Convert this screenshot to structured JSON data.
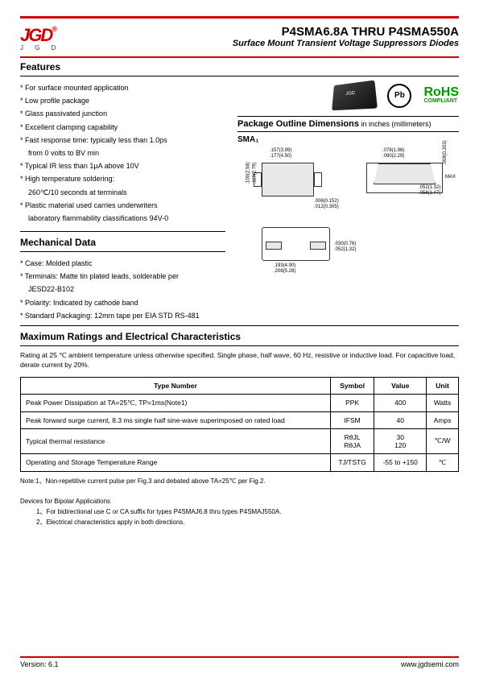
{
  "logo": {
    "mark": "JGD",
    "sub": "J G D",
    "reg": "®"
  },
  "title": "P4SMA6.8A THRU P4SMA550A",
  "subtitle": "Surface Mount Transient Voltage Suppressors Diodes",
  "sections": {
    "features": "Features",
    "mechanical": "Mechanical Data",
    "maxratings": "Maximum Ratings and Electrical Characteristics",
    "pkg_outline": "Package Outline Dimensions",
    "pkg_units": " in inches (millimeters)",
    "sma": "SMA₁"
  },
  "features": [
    "For surface mounted application",
    "Low profile package",
    "Glass passivated junction",
    "Excellent clamping capability",
    "Fast response time: typically less than 1.0ps",
    "from 0 volts to BV min",
    "Typical IR less than 1μA above 10V",
    "High temperature soldering:",
    "260℃/10 seconds at terminals",
    "Plastic material used carries underwriters",
    "laboratory flammability classifications 94V-0"
  ],
  "feature_indents": [
    false,
    false,
    false,
    false,
    false,
    true,
    false,
    false,
    true,
    false,
    true
  ],
  "mechanical": [
    "Case: Molded plastic",
    "Terminals: Matte tin plated leads, solderable per",
    "JESD22-B102",
    "Polarity: Indicated by cathode band",
    "Standard Packaging: 12mm tape per EIA STD RS-481"
  ],
  "mech_indents": [
    false,
    false,
    true,
    false,
    false
  ],
  "compliance": {
    "pb": "Pb",
    "rohs": "RoHS",
    "rohs_sub": "COMPLIANT"
  },
  "dimensions": {
    "d1": ".157(3.99)",
    "d2": ".177(4.50)",
    "d3": ".078(1.98)",
    "d4": ".090(2.29)",
    "d5": ".100(2.54)",
    "d6": ".110(2.79)",
    "d7": ".006(0.152)",
    "d8": ".012(0.305)",
    "d9": ".052(1.32)",
    "d10": ".058(1.47)",
    "d11": ".030(0.76)",
    "d12": ".052(1.32)",
    "d13": ".193(4.90)",
    "d14": ".208(5.28)",
    "d15": ".008(0.203)",
    "d16": "MAX"
  },
  "ratings_note": "Rating at 25 ℃ ambient temperature unless otherwise specified. Single phase, half wave, 60 Hz, resistive or inductive load. For capacitive load, derate current by 20%.",
  "table": {
    "headers": [
      "Type Number",
      "Symbol",
      "Value",
      "Unit"
    ],
    "rows": [
      [
        "Peak Power Dissipation at TA=25℃, TP=1ms(Note1)",
        "PPK",
        "400",
        "Watts"
      ],
      [
        "Peak forward surge current, 8.3 ms single half sine-wave superimposed on rated load",
        "IFSM",
        "40",
        "Amps"
      ],
      [
        "Typical thermal resistance",
        "RθJL\nRθJA",
        "30\n120",
        "℃/W"
      ],
      [
        "Operating and Storage Temperature Range",
        "TJ/TSTG",
        "-55 to +150",
        "℃"
      ]
    ]
  },
  "notes": {
    "n1": "Note:1、Non-repetitive current pulse per Fig.3 and debated above TA=25℃ per Fig.2.",
    "bipolar": "Devices for Bipolar Applications",
    "b1": "1、For bidirectional use C or CA suffix for types P4SMAJ6.8 thru types P4SMAJ550A.",
    "b2": "2、Electrical characteristics apply in both directions."
  },
  "footer": {
    "version": "Version: 6.1",
    "url": "www.jgdsemi.com"
  }
}
